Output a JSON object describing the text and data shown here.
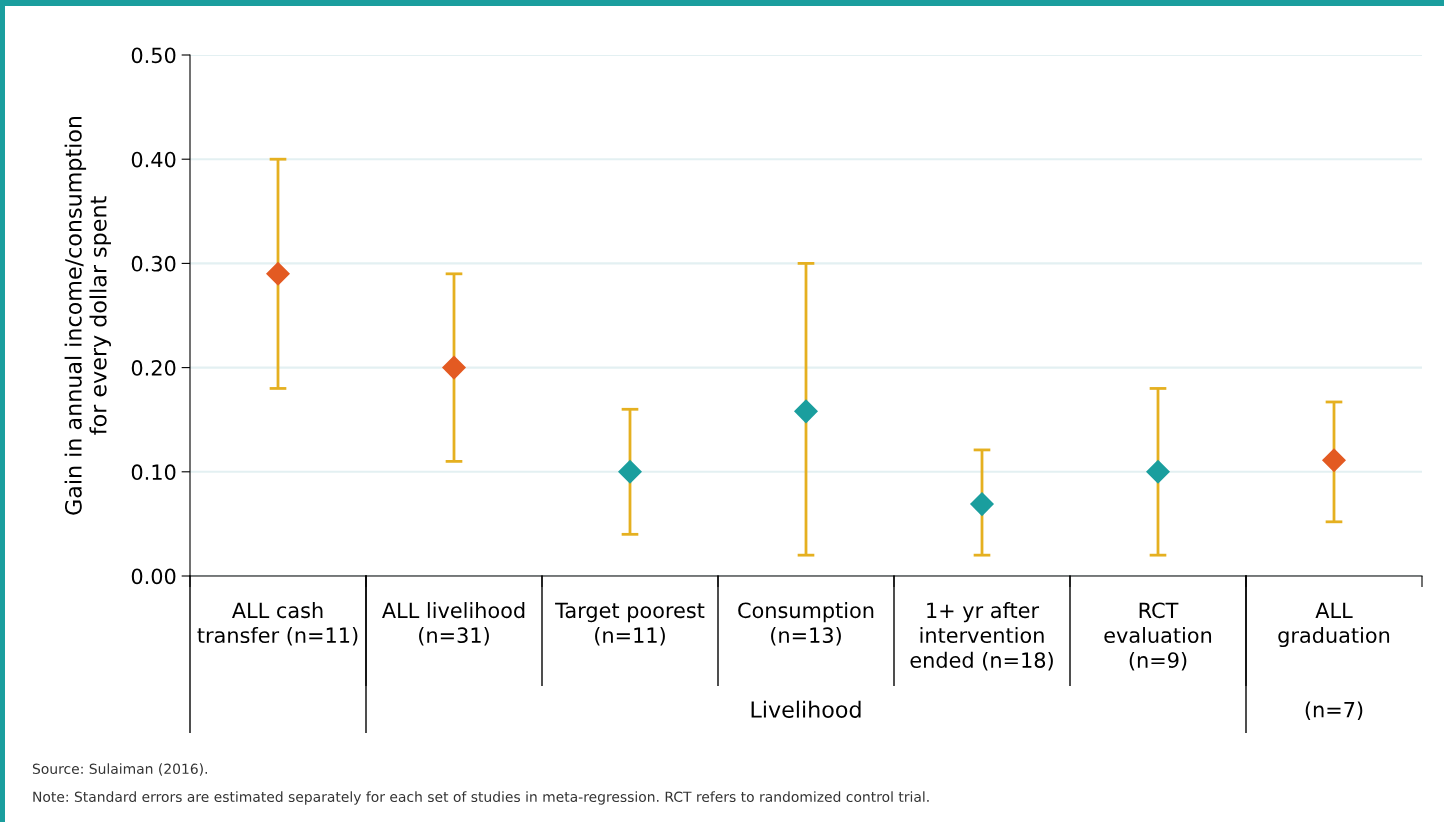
{
  "chart_data": {
    "type": "scatter",
    "ylabel": "Gain in annual income/consumption\nfor every dollar spent",
    "categories": [
      "ALL cash\ntransfer (n=11)",
      "ALL livelihood\n(n=31)",
      "Target poorest\n(n=11)",
      "Consumption\n(n=13)",
      "1+ yr after\nintervention\nended (n=18)",
      "RCT\nevaluation\n(n=9)",
      "ALL\ngraduation"
    ],
    "series": [
      {
        "values": [
          0.29,
          0.2,
          0.1,
          0.158,
          0.069,
          0.1,
          0.111
        ],
        "colors": [
          "#e35a22",
          "#e35a22",
          "#1a9e9e",
          "#1a9e9e",
          "#1a9e9e",
          "#1a9e9e",
          "#e35a22"
        ],
        "errors": [
          [
            0.18,
            0.4
          ],
          [
            0.11,
            0.29
          ],
          [
            0.04,
            0.16
          ],
          [
            0.02,
            0.3
          ],
          [
            0.02,
            0.121
          ],
          [
            0.02,
            0.18
          ],
          [
            0.052,
            0.167
          ]
        ]
      }
    ],
    "ylim": [
      0,
      0.5
    ],
    "yticks": [
      {
        "value": 0,
        "label": "0.00"
      },
      {
        "value": 0.1,
        "label": "0.10"
      },
      {
        "value": 0.2,
        "label": "0.20"
      },
      {
        "value": 0.3,
        "label": "0.30"
      },
      {
        "value": 0.4,
        "label": "0.40"
      },
      {
        "value": 0.5,
        "label": "0.50"
      }
    ],
    "grid": "y",
    "marker": "diamond",
    "annotations": [
      "Livelihood",
      "(n=7)",
      "Source: Sulaiman (2016).",
      "Note: Standard errors are estimated separately for each set of studies in meta-regression. RCT refers to randomized control trial."
    ]
  }
}
